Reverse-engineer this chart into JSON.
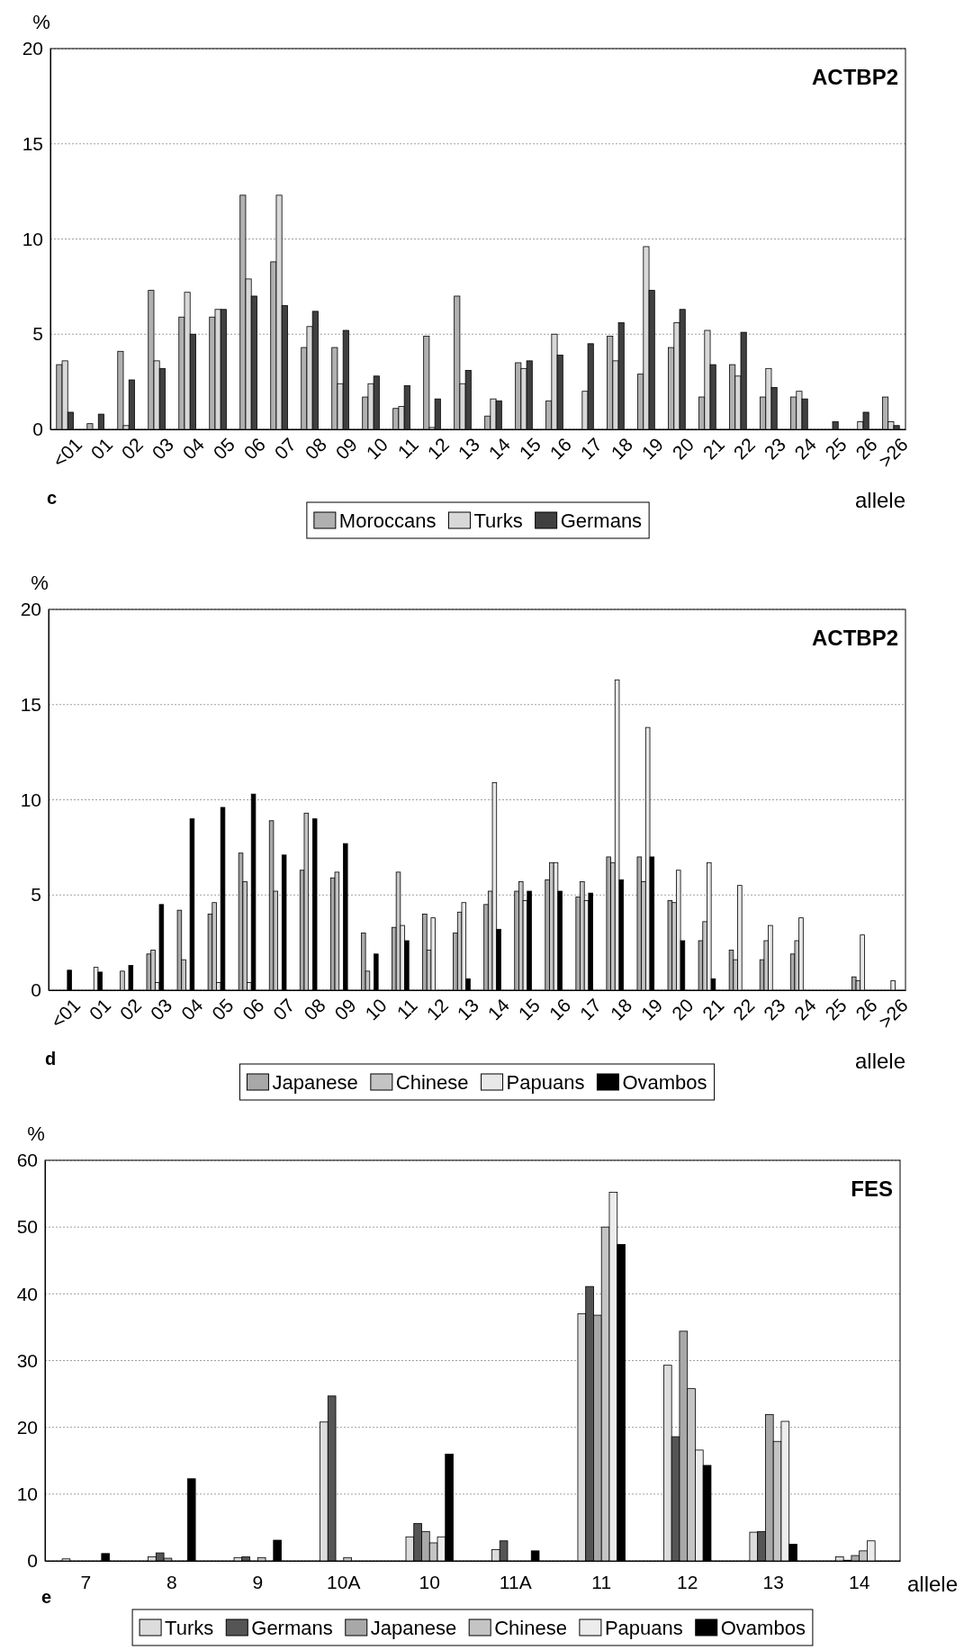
{
  "chart_data": [
    {
      "type": "bar",
      "title": "ACTBP2",
      "ylabel": "%",
      "xlabel": "allele",
      "annotations": [
        "c"
      ],
      "categories": [
        "<01",
        "01",
        "02",
        "03",
        "04",
        "05",
        "06",
        "07",
        "08",
        "09",
        "10",
        "11",
        "12",
        "13",
        "14",
        "15",
        "16",
        "17",
        "18",
        "19",
        "20",
        "21",
        "22",
        "23",
        "24",
        "25",
        "26",
        ">26"
      ],
      "series": [
        {
          "name": "Moroccans",
          "color": "#b0b0b0",
          "values": [
            3.4,
            0.3,
            4.1,
            7.3,
            5.9,
            5.9,
            12.3,
            8.8,
            4.3,
            4.3,
            1.7,
            1.1,
            4.9,
            7.0,
            0.7,
            3.5,
            1.5,
            0,
            4.9,
            2.9,
            4.3,
            1.7,
            3.4,
            1.7,
            1.7,
            0,
            0,
            1.7
          ]
        },
        {
          "name": "Turks",
          "color": "#d8d8d8",
          "values": [
            3.6,
            0,
            0.2,
            3.6,
            7.2,
            6.3,
            7.9,
            12.3,
            5.4,
            2.4,
            2.4,
            1.2,
            0.1,
            2.4,
            1.6,
            3.2,
            5.0,
            2.0,
            3.6,
            9.6,
            5.6,
            5.2,
            2.8,
            3.2,
            2.0,
            0,
            0.4,
            0.4
          ]
        },
        {
          "name": "Germans",
          "color": "#404040",
          "values": [
            0.9,
            0.8,
            2.6,
            3.2,
            5.0,
            6.3,
            7.0,
            6.5,
            6.2,
            5.2,
            2.8,
            2.3,
            1.6,
            3.1,
            1.5,
            3.6,
            3.9,
            4.5,
            5.6,
            7.3,
            6.3,
            3.4,
            5.1,
            2.2,
            1.6,
            0.4,
            0.9,
            0.2
          ]
        }
      ],
      "ylim": [
        0,
        20
      ],
      "yticks": [
        0,
        5,
        10,
        15,
        20
      ],
      "grid": "y",
      "legend": "bottom"
    },
    {
      "type": "bar",
      "title": "ACTBP2",
      "ylabel": "%",
      "xlabel": "allele",
      "annotations": [
        "d"
      ],
      "categories": [
        "<01",
        "01",
        "02",
        "03",
        "04",
        "05",
        "06",
        "07",
        "08",
        "09",
        "10",
        "11",
        "12",
        "13",
        "14",
        "15",
        "16",
        "17",
        "18",
        "19",
        "20",
        "21",
        "22",
        "23",
        "24",
        "25",
        "26",
        ">26"
      ],
      "series": [
        {
          "name": "Japanese",
          "color": "#a8a8a8",
          "values": [
            0,
            0,
            0,
            1.9,
            4.2,
            4.0,
            7.2,
            8.9,
            6.3,
            5.9,
            3.0,
            3.3,
            4.0,
            3.0,
            4.5,
            5.2,
            5.8,
            4.9,
            7.0,
            7.0,
            4.7,
            2.6,
            2.1,
            1.6,
            1.9,
            0,
            0.7,
            0
          ]
        },
        {
          "name": "Chinese",
          "color": "#c4c4c4",
          "values": [
            0,
            0,
            1.0,
            2.1,
            1.6,
            4.6,
            5.7,
            5.2,
            9.3,
            6.2,
            1.0,
            6.2,
            2.1,
            4.1,
            5.2,
            5.7,
            6.7,
            5.7,
            6.7,
            5.7,
            4.6,
            3.6,
            1.6,
            2.6,
            2.6,
            0,
            0.5,
            0
          ]
        },
        {
          "name": "Papuans",
          "color": "#e8e8e8",
          "values": [
            0,
            1.2,
            0,
            0.4,
            0,
            0.4,
            0.4,
            0,
            0,
            0,
            0,
            3.4,
            3.8,
            4.6,
            10.9,
            4.7,
            6.7,
            4.7,
            16.3,
            13.8,
            6.3,
            6.7,
            5.5,
            3.4,
            3.8,
            0,
            2.9,
            0.5
          ]
        },
        {
          "name": "Ovambos",
          "color": "#000000",
          "values": [
            1.05,
            0.95,
            1.3,
            4.5,
            9.0,
            9.6,
            10.3,
            7.1,
            9.0,
            7.7,
            1.9,
            2.6,
            0,
            0.6,
            3.2,
            5.2,
            5.2,
            5.1,
            5.8,
            7.0,
            2.6,
            0.6,
            0,
            0,
            0,
            0,
            0,
            0
          ]
        }
      ],
      "ylim": [
        0,
        20
      ],
      "yticks": [
        0,
        5,
        10,
        15,
        20
      ],
      "grid": "y",
      "legend": "bottom"
    },
    {
      "type": "bar",
      "title": "FES",
      "ylabel": "%",
      "xlabel": "allele",
      "annotations": [
        "e"
      ],
      "categories": [
        "7",
        "8",
        "9",
        "10A",
        "10",
        "11A",
        "11",
        "12",
        "13",
        "14"
      ],
      "series": [
        {
          "name": "Turks",
          "color": "#dcdcdc",
          "values": [
            0.3,
            0.6,
            0.5,
            20.8,
            3.6,
            1.7,
            37.0,
            29.3,
            4.3,
            0.6
          ]
        },
        {
          "name": "Germans",
          "color": "#555555",
          "values": [
            0,
            1.2,
            0.6,
            24.7,
            5.6,
            3.0,
            41.1,
            18.6,
            4.4,
            0.1
          ]
        },
        {
          "name": "Japanese",
          "color": "#a8a8a8",
          "values": [
            0,
            0.4,
            0,
            0,
            4.4,
            0,
            36.8,
            34.4,
            21.9,
            0.8
          ]
        },
        {
          "name": "Chinese",
          "color": "#c4c4c4",
          "values": [
            0,
            0,
            0.5,
            0.5,
            2.7,
            0,
            50.0,
            25.8,
            17.9,
            1.5
          ]
        },
        {
          "name": "Papuans",
          "color": "#ececec",
          "values": [
            0,
            0,
            0,
            0,
            3.6,
            0,
            55.2,
            16.6,
            20.9,
            3.0
          ]
        },
        {
          "name": "Ovambos",
          "color": "#000000",
          "values": [
            1.1,
            12.3,
            3.1,
            0,
            16.0,
            1.5,
            47.4,
            14.3,
            2.5,
            0
          ]
        }
      ],
      "ylim": [
        0,
        60
      ],
      "yticks": [
        0,
        10,
        20,
        30,
        40,
        50,
        60
      ],
      "grid": "y",
      "legend": "bottom"
    }
  ]
}
